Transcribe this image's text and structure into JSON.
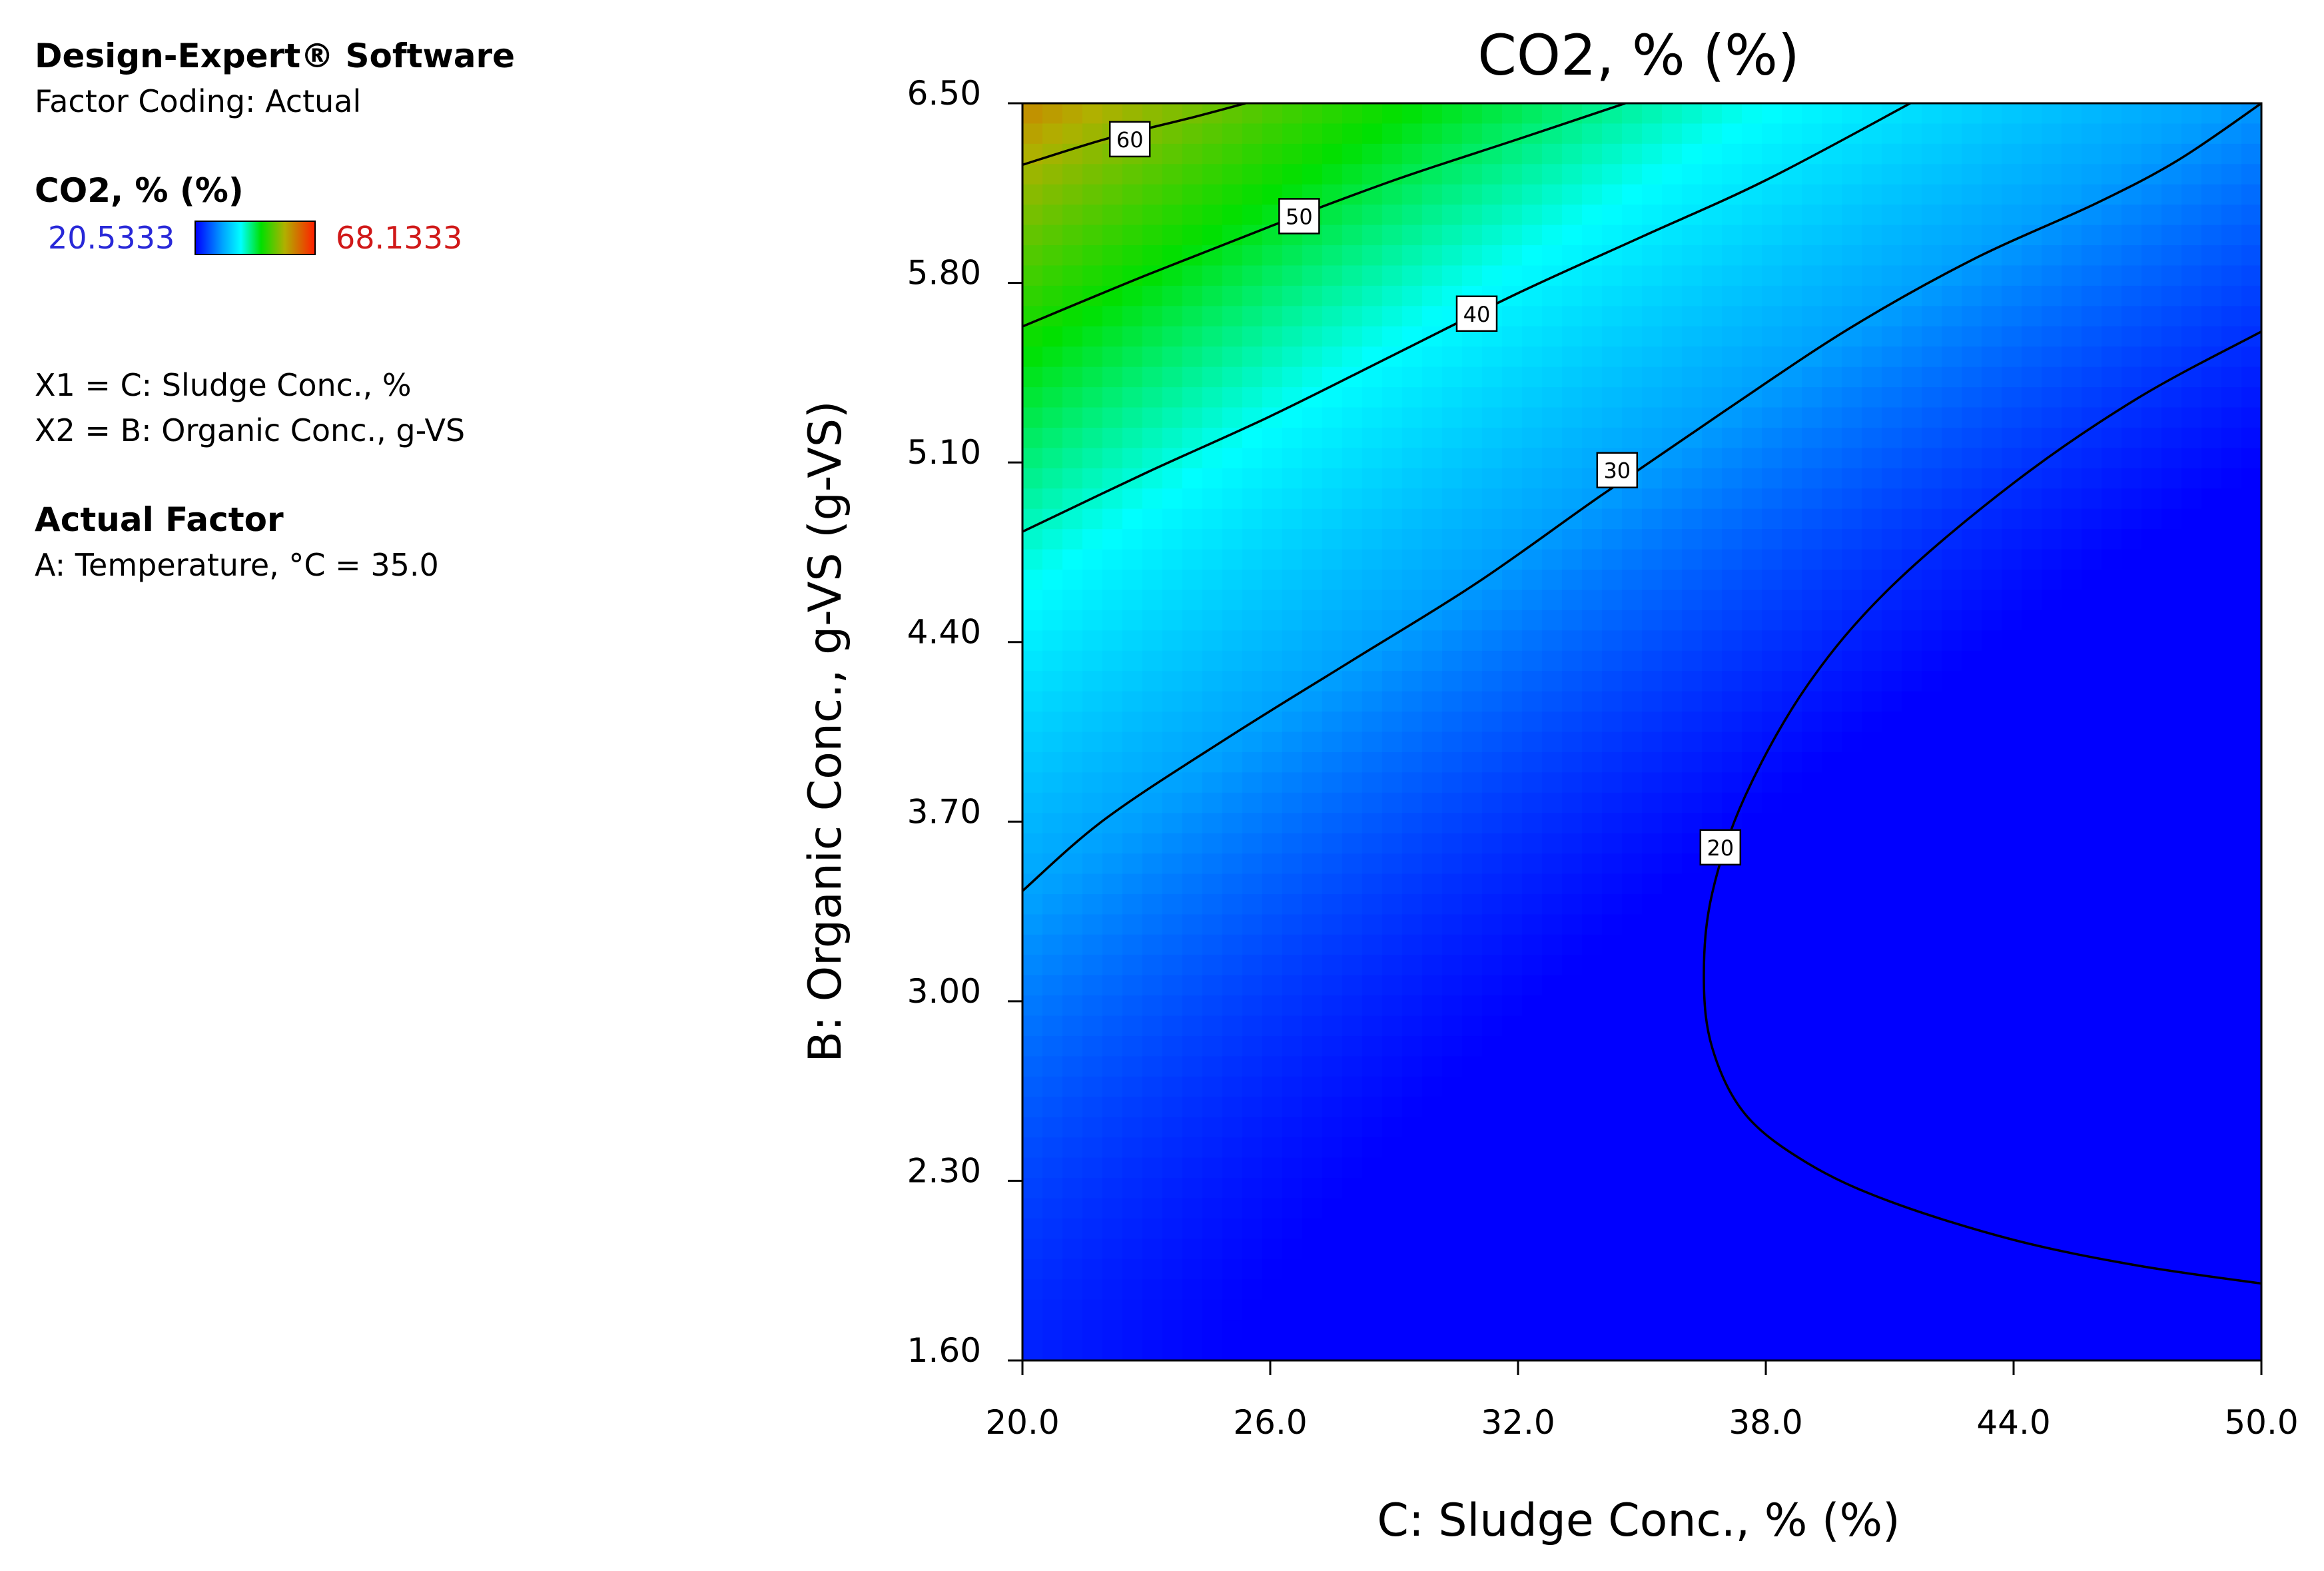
{
  "legend": {
    "software": "Design-Expert® Software",
    "coding": "Factor Coding: Actual",
    "response": "CO2, % (%)",
    "low": "20.5333",
    "high": "68.1333",
    "x1": "X1 = C: Sludge Conc., %",
    "x2": "X2 = B: Organic Conc., g-VS",
    "actual_factor_title": "Actual Factor",
    "actual_factor": "A: Temperature, °C = 35.0"
  },
  "chart_data": {
    "type": "contour",
    "title": "CO2, % (%)",
    "xlabel": "C: Sludge Conc., % (%)",
    "ylabel": "B: Organic Conc., g-VS (g-VS)",
    "xlim": [
      20.0,
      50.0
    ],
    "ylim": [
      1.6,
      6.5
    ],
    "x_ticks": [
      "20.0",
      "26.0",
      "32.0",
      "38.0",
      "44.0",
      "50.0"
    ],
    "y_ticks": [
      "1.60",
      "2.30",
      "3.00",
      "3.70",
      "4.40",
      "5.10",
      "5.80",
      "6.50"
    ],
    "color_range": [
      20.5333,
      68.1333
    ],
    "colorscale": [
      "#0000ff",
      "#00a0ff",
      "#00ffff",
      "#00e000",
      "#b0b000",
      "#ff2000"
    ],
    "contours": [
      {
        "level": "60",
        "label_at": [
          22.6,
          6.36
        ],
        "points": [
          [
            20.0,
            6.26
          ],
          [
            22.0,
            6.36
          ],
          [
            24.0,
            6.44
          ],
          [
            25.4,
            6.5
          ]
        ]
      },
      {
        "level": "50",
        "label_at": [
          26.7,
          6.06
        ],
        "points": [
          [
            20.0,
            5.63
          ],
          [
            23.0,
            5.83
          ],
          [
            26.0,
            6.02
          ],
          [
            29.0,
            6.2
          ],
          [
            32.0,
            6.36
          ],
          [
            34.6,
            6.5
          ]
        ]
      },
      {
        "level": "40",
        "label_at": [
          31.0,
          5.68
        ],
        "points": [
          [
            20.0,
            4.83
          ],
          [
            23.0,
            5.06
          ],
          [
            26.0,
            5.28
          ],
          [
            29.0,
            5.52
          ],
          [
            32.0,
            5.76
          ],
          [
            35.0,
            5.98
          ],
          [
            38.0,
            6.2
          ],
          [
            41.5,
            6.5
          ]
        ]
      },
      {
        "level": "30",
        "label_at": [
          34.4,
          5.07
        ],
        "points": [
          [
            20.0,
            3.43
          ],
          [
            22.0,
            3.71
          ],
          [
            25.0,
            4.03
          ],
          [
            28.0,
            4.33
          ],
          [
            31.0,
            4.63
          ],
          [
            34.0,
            4.97
          ],
          [
            37.0,
            5.3
          ],
          [
            40.0,
            5.62
          ],
          [
            43.0,
            5.89
          ],
          [
            46.0,
            6.11
          ],
          [
            48.0,
            6.28
          ],
          [
            50.0,
            6.5
          ]
        ]
      },
      {
        "level": "20",
        "label_at": [
          36.9,
          3.6
        ],
        "points": [
          [
            50.0,
            5.61
          ],
          [
            47.0,
            5.35
          ],
          [
            44.0,
            5.02
          ],
          [
            41.0,
            4.61
          ],
          [
            39.0,
            4.23
          ],
          [
            37.5,
            3.8
          ],
          [
            36.7,
            3.42
          ],
          [
            36.5,
            3.1
          ],
          [
            36.7,
            2.82
          ],
          [
            37.5,
            2.56
          ],
          [
            39.0,
            2.37
          ],
          [
            41.0,
            2.22
          ],
          [
            44.0,
            2.07
          ],
          [
            47.0,
            1.97
          ],
          [
            50.0,
            1.9
          ]
        ]
      }
    ]
  }
}
